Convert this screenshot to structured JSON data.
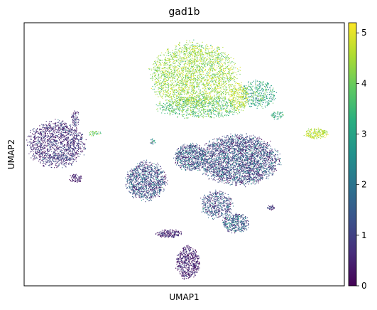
{
  "chart_data": {
    "type": "scatter",
    "title": "gad1b",
    "xlabel": "UMAP1",
    "ylabel": "UMAP2",
    "x_ticks_shown": false,
    "y_ticks_shown": false,
    "grid": false,
    "colorbar": {
      "colormap": "viridis",
      "range": [
        0,
        5.2
      ],
      "ticks": [
        {
          "value": 0,
          "label": "0"
        },
        {
          "value": 1,
          "label": "1"
        },
        {
          "value": 2,
          "label": "2"
        },
        {
          "value": 3,
          "label": "3"
        },
        {
          "value": 4,
          "label": "4"
        },
        {
          "value": 5,
          "label": "5"
        }
      ]
    },
    "clusters": [
      {
        "id": "c1",
        "cx": 0.53,
        "cy": 0.8,
        "rx": 0.13,
        "ry": 0.12,
        "n": 2600,
        "mean": 4.3,
        "sd": 0.5
      },
      {
        "id": "c2",
        "cx": 0.55,
        "cy": 0.68,
        "rx": 0.13,
        "ry": 0.04,
        "n": 800,
        "mean": 3.7,
        "sd": 0.6
      },
      {
        "id": "c3",
        "cx": 0.67,
        "cy": 0.72,
        "rx": 0.03,
        "ry": 0.05,
        "n": 260,
        "mean": 4.6,
        "sd": 0.4
      },
      {
        "id": "c4",
        "cx": 0.73,
        "cy": 0.73,
        "rx": 0.055,
        "ry": 0.05,
        "n": 400,
        "mean": 3.1,
        "sd": 0.7
      },
      {
        "id": "c5",
        "cx": 0.79,
        "cy": 0.65,
        "rx": 0.02,
        "ry": 0.015,
        "n": 60,
        "mean": 3.0,
        "sd": 0.6
      },
      {
        "id": "c6",
        "cx": 0.91,
        "cy": 0.58,
        "rx": 0.035,
        "ry": 0.02,
        "n": 200,
        "mean": 4.6,
        "sd": 0.4
      },
      {
        "id": "c7",
        "cx": 0.1,
        "cy": 0.54,
        "rx": 0.085,
        "ry": 0.085,
        "n": 1500,
        "mean": 0.6,
        "sd": 0.6
      },
      {
        "id": "c8",
        "cx": 0.16,
        "cy": 0.64,
        "rx": 0.012,
        "ry": 0.03,
        "n": 80,
        "mean": 0.7,
        "sd": 0.6
      },
      {
        "id": "c9",
        "cx": 0.16,
        "cy": 0.41,
        "rx": 0.02,
        "ry": 0.015,
        "n": 80,
        "mean": 0.4,
        "sd": 0.4
      },
      {
        "id": "c10",
        "cx": 0.22,
        "cy": 0.58,
        "rx": 0.02,
        "ry": 0.01,
        "n": 40,
        "mean": 4.0,
        "sd": 0.6
      },
      {
        "id": "c11",
        "cx": 0.67,
        "cy": 0.48,
        "rx": 0.12,
        "ry": 0.09,
        "n": 3000,
        "mean": 1.0,
        "sd": 0.9
      },
      {
        "id": "c12",
        "cx": 0.52,
        "cy": 0.49,
        "rx": 0.05,
        "ry": 0.05,
        "n": 700,
        "mean": 1.2,
        "sd": 0.9
      },
      {
        "id": "c13",
        "cx": 0.38,
        "cy": 0.4,
        "rx": 0.06,
        "ry": 0.07,
        "n": 1100,
        "mean": 1.1,
        "sd": 0.8
      },
      {
        "id": "c14",
        "cx": 0.6,
        "cy": 0.31,
        "rx": 0.05,
        "ry": 0.05,
        "n": 500,
        "mean": 1.1,
        "sd": 0.8
      },
      {
        "id": "c15",
        "cx": 0.66,
        "cy": 0.24,
        "rx": 0.04,
        "ry": 0.035,
        "n": 400,
        "mean": 1.3,
        "sd": 0.8
      },
      {
        "id": "c16",
        "cx": 0.45,
        "cy": 0.2,
        "rx": 0.04,
        "ry": 0.015,
        "n": 200,
        "mean": 0.4,
        "sd": 0.4
      },
      {
        "id": "c17",
        "cx": 0.51,
        "cy": 0.09,
        "rx": 0.035,
        "ry": 0.06,
        "n": 600,
        "mean": 0.4,
        "sd": 0.4
      },
      {
        "id": "c18",
        "cx": 0.77,
        "cy": 0.3,
        "rx": 0.012,
        "ry": 0.01,
        "n": 40,
        "mean": 0.6,
        "sd": 0.5
      },
      {
        "id": "c19",
        "cx": 0.4,
        "cy": 0.55,
        "rx": 0.01,
        "ry": 0.01,
        "n": 20,
        "mean": 2.4,
        "sd": 0.8
      }
    ]
  }
}
